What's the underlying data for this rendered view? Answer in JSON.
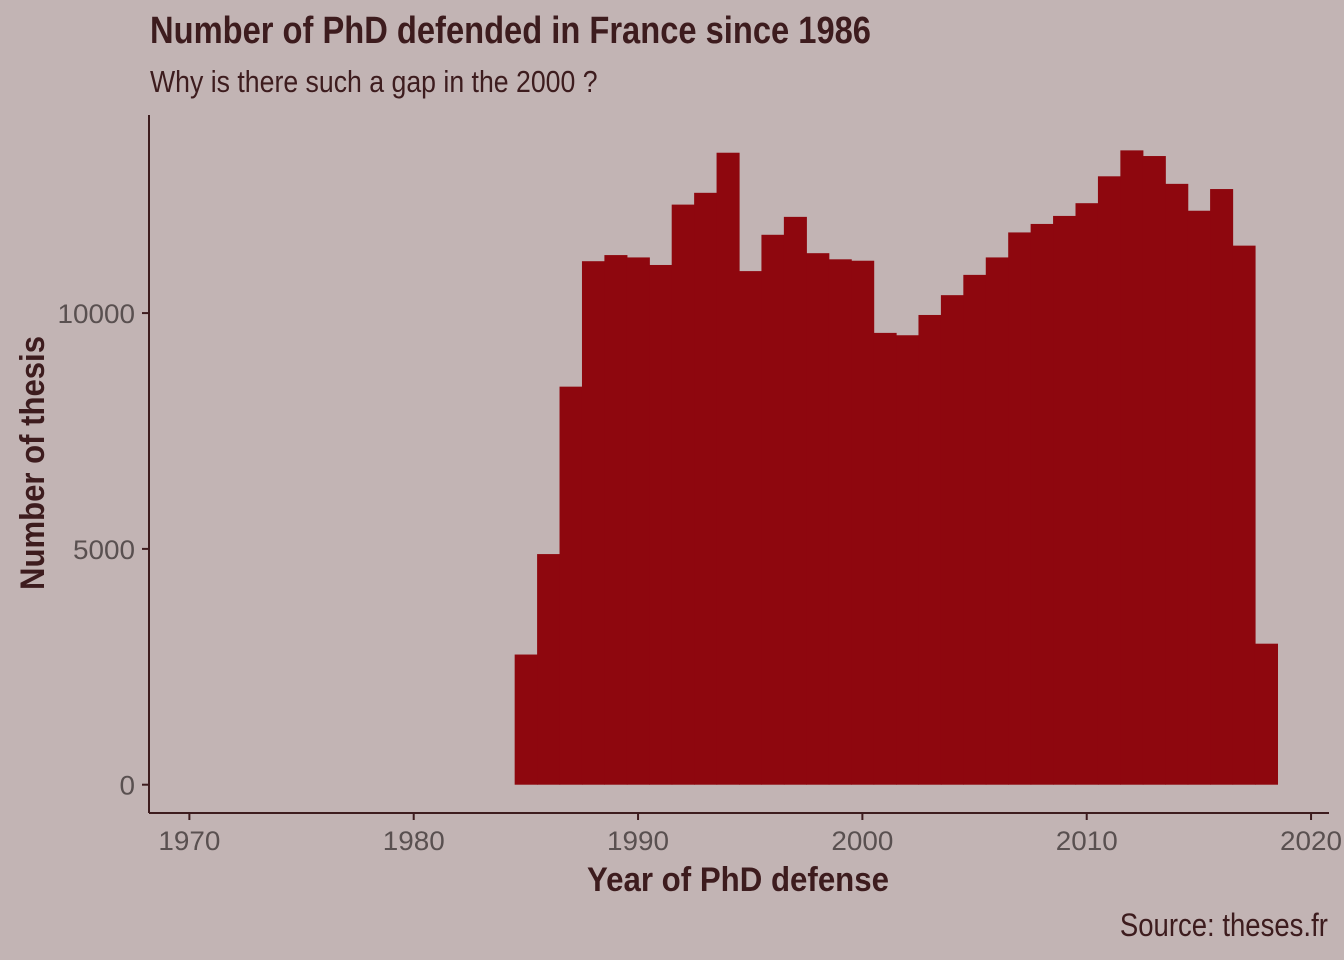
{
  "chart_data": {
    "type": "bar",
    "title": "Number of PhD defended in France since 1986",
    "subtitle": "Why is there such a gap in the 2000 ?",
    "caption": "Source: theses.fr",
    "xlabel": "Year of PhD defense",
    "ylabel": "Number of thesis",
    "xlim": [
      1968.2,
      2020.8
    ],
    "ylim": [
      -600,
      14200
    ],
    "x_ticks": [
      1970,
      1980,
      1990,
      2000,
      2010,
      2020
    ],
    "y_ticks": [
      0,
      5000,
      10000
    ],
    "bin_width": 1,
    "grid": false,
    "bar_color": "#8e070e",
    "background_color": "#c2b4b4",
    "text_color": "#3d1c1e",
    "x": [
      1985,
      1986,
      1987,
      1988,
      1989,
      1990,
      1991,
      1992,
      1993,
      1994,
      1995,
      1996,
      1997,
      1998,
      1999,
      2000,
      2001,
      2002,
      2003,
      2004,
      2005,
      2006,
      2007,
      2008,
      2009,
      2010,
      2011,
      2012,
      2013,
      2014,
      2015,
      2016,
      2017,
      2018
    ],
    "values": [
      2760,
      4890,
      8440,
      11100,
      11230,
      11180,
      11020,
      12300,
      12550,
      13400,
      10890,
      11660,
      12040,
      11270,
      11140,
      11110,
      9580,
      9530,
      9960,
      10380,
      10810,
      11180,
      11710,
      11890,
      12060,
      12330,
      12900,
      13450,
      13330,
      12740,
      12170,
      12630,
      11430,
      2990
    ]
  }
}
